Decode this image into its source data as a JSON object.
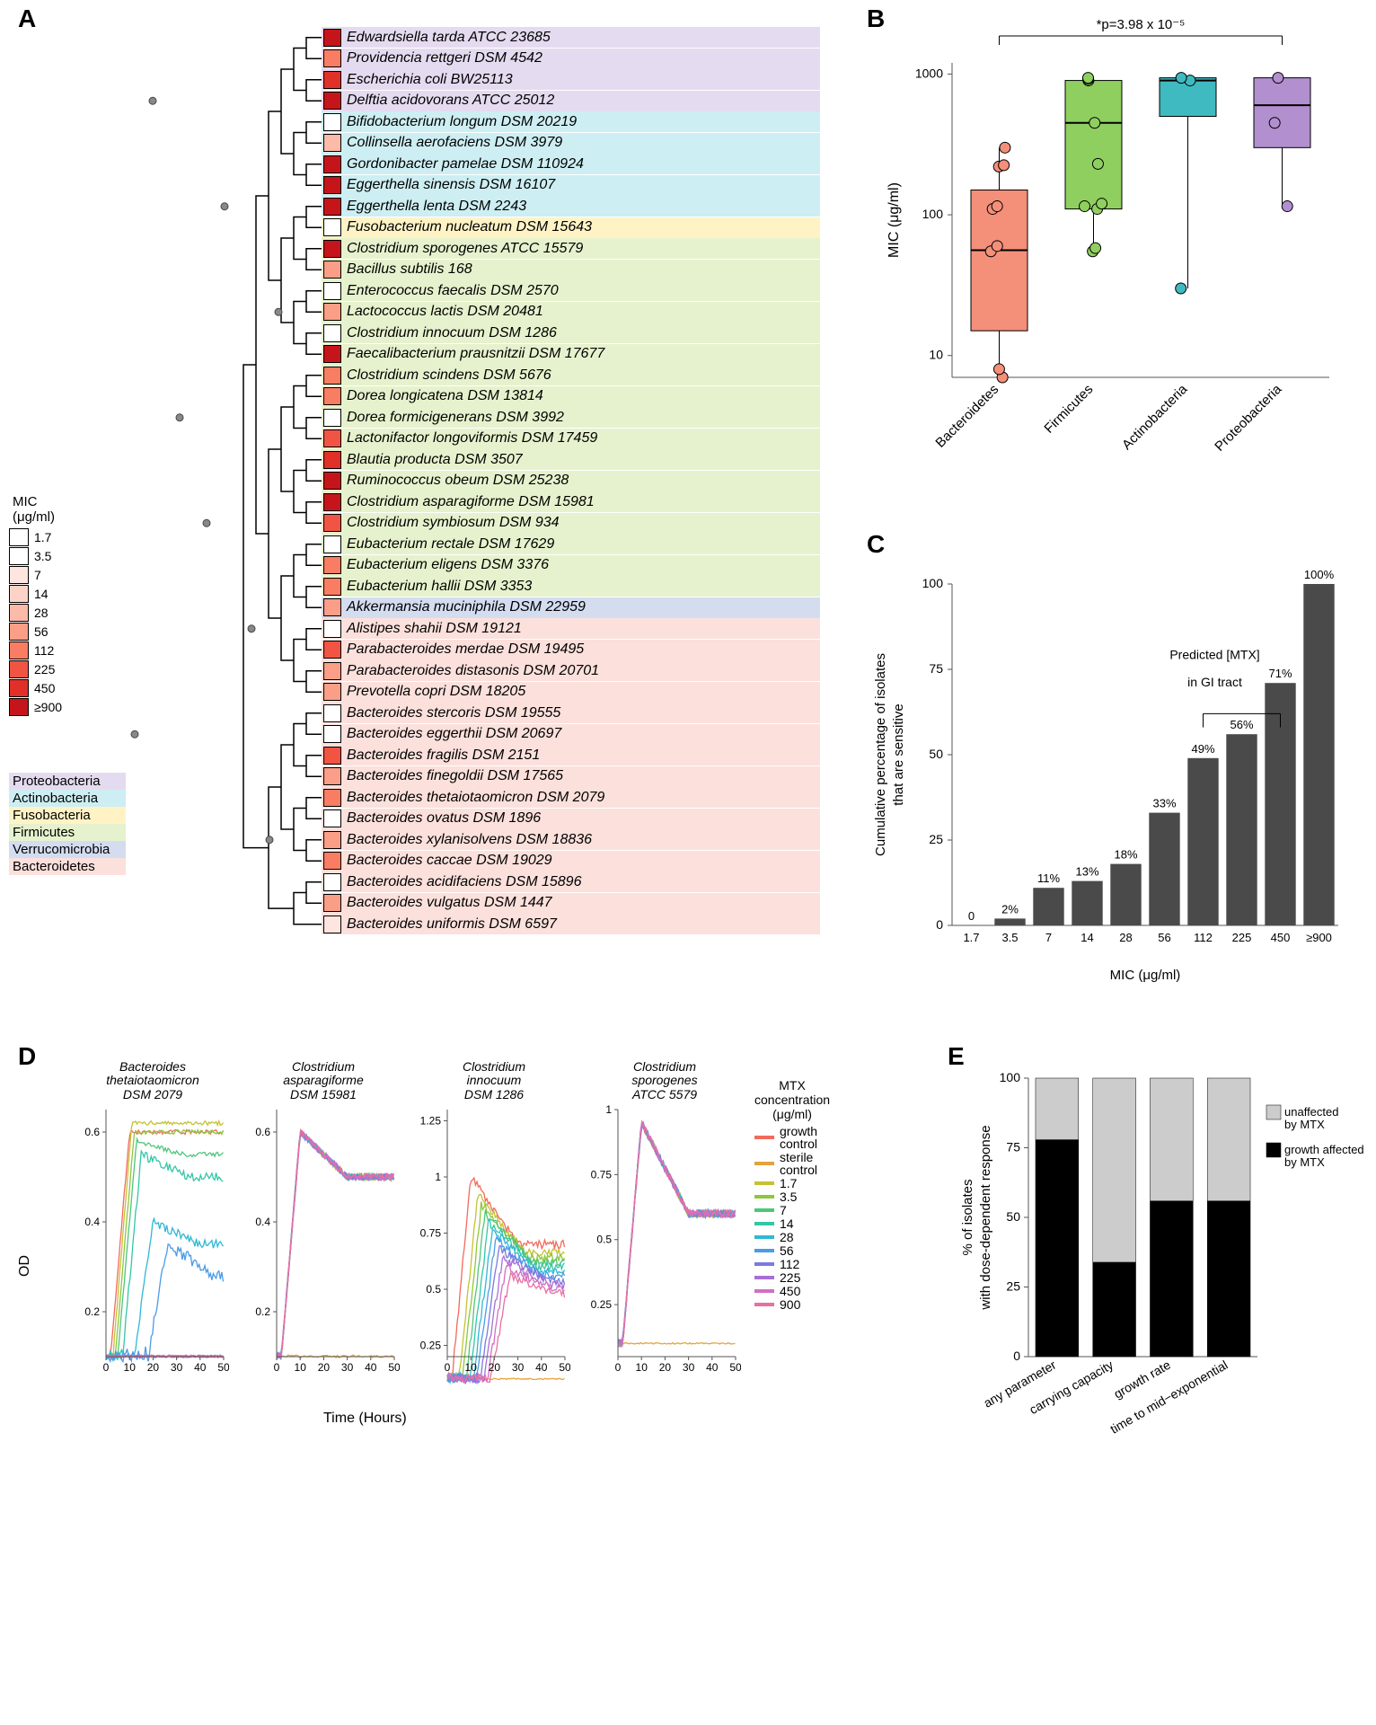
{
  "panel_labels": {
    "A": "A",
    "B": "B",
    "C": "C",
    "D": "D",
    "E": "E"
  },
  "mic_legend": {
    "title": "MIC\n(μg/ml)",
    "levels": [
      {
        "val": "1.7",
        "color": "#ffffff"
      },
      {
        "val": "3.5",
        "color": "#ffffff"
      },
      {
        "val": "7",
        "color": "#fee5e0"
      },
      {
        "val": "14",
        "color": "#fdd3c8"
      },
      {
        "val": "28",
        "color": "#fcbaa8"
      },
      {
        "val": "56",
        "color": "#fb9e87"
      },
      {
        "val": "112",
        "color": "#f97d63"
      },
      {
        "val": "225",
        "color": "#f15442"
      },
      {
        "val": "450",
        "color": "#e03028"
      },
      {
        "val": "≥900",
        "color": "#c5151a"
      }
    ]
  },
  "phyla": {
    "Proteobacteria": "#e5dbf0",
    "Actinobacteria": "#cdeef2",
    "Fusobacteria": "#fff3c6",
    "Firmicutes": "#e6f2cd",
    "Verrucomicrobia": "#d4dcf0",
    "Bacteroidetes": "#fbe0dc"
  },
  "phylum_order": [
    "Proteobacteria",
    "Actinobacteria",
    "Fusobacteria",
    "Firmicutes",
    "Verrucomicrobia",
    "Bacteroidetes"
  ],
  "panelA": {
    "species": [
      {
        "name": "Edwardsiella tarda ATCC 23685",
        "mic": "≥900",
        "phylum": "Proteobacteria"
      },
      {
        "name": "Providencia rettgeri DSM 4542",
        "mic": "112",
        "phylum": "Proteobacteria"
      },
      {
        "name": "Escherichia coli BW25113",
        "mic": "450",
        "phylum": "Proteobacteria"
      },
      {
        "name": "Delftia acidovorans ATCC 25012",
        "mic": "≥900",
        "phylum": "Proteobacteria"
      },
      {
        "name": "Bifidobacterium longum DSM 20219",
        "mic": "1.7",
        "phylum": "Actinobacteria"
      },
      {
        "name": "Collinsella aerofaciens DSM 3979",
        "mic": "28",
        "phylum": "Actinobacteria"
      },
      {
        "name": "Gordonibacter pamelae DSM 110924",
        "mic": "≥900",
        "phylum": "Actinobacteria"
      },
      {
        "name": "Eggerthella sinensis DSM 16107",
        "mic": "≥900",
        "phylum": "Actinobacteria"
      },
      {
        "name": "Eggerthella lenta DSM 2243",
        "mic": "≥900",
        "phylum": "Actinobacteria"
      },
      {
        "name": "Fusobacterium nucleatum DSM 15643",
        "mic": "1.7",
        "phylum": "Fusobacteria"
      },
      {
        "name": "Clostridium sporogenes ATCC 15579",
        "mic": "≥900",
        "phylum": "Firmicutes"
      },
      {
        "name": "Bacillus subtilis 168",
        "mic": "56",
        "phylum": "Firmicutes"
      },
      {
        "name": "Enterococcus faecalis DSM 2570",
        "mic": "1.7",
        "phylum": "Firmicutes"
      },
      {
        "name": "Lactococcus lactis DSM 20481",
        "mic": "56",
        "phylum": "Firmicutes"
      },
      {
        "name": "Clostridium innocuum DSM 1286",
        "mic": "1.7",
        "phylum": "Firmicutes"
      },
      {
        "name": "Faecalibacterium prausnitzii DSM 17677",
        "mic": "≥900",
        "phylum": "Firmicutes"
      },
      {
        "name": "Clostridium scindens DSM 5676",
        "mic": "112",
        "phylum": "Firmicutes"
      },
      {
        "name": "Dorea longicatena DSM 13814",
        "mic": "112",
        "phylum": "Firmicutes"
      },
      {
        "name": "Dorea formicigenerans DSM 3992",
        "mic": "1.7",
        "phylum": "Firmicutes"
      },
      {
        "name": "Lactonifactor longoviformis DSM 17459",
        "mic": "225",
        "phylum": "Firmicutes"
      },
      {
        "name": "Blautia producta DSM 3507",
        "mic": "450",
        "phylum": "Firmicutes"
      },
      {
        "name": "Ruminococcus obeum DSM 25238",
        "mic": "≥900",
        "phylum": "Firmicutes"
      },
      {
        "name": "Clostridium asparagiforme DSM 15981",
        "mic": "≥900",
        "phylum": "Firmicutes"
      },
      {
        "name": "Clostridium symbiosum DSM 934",
        "mic": "225",
        "phylum": "Firmicutes"
      },
      {
        "name": "Eubacterium rectale DSM 17629",
        "mic": "1.7",
        "phylum": "Firmicutes"
      },
      {
        "name": "Eubacterium eligens DSM 3376",
        "mic": "112",
        "phylum": "Firmicutes"
      },
      {
        "name": "Eubacterium hallii DSM 3353",
        "mic": "112",
        "phylum": "Firmicutes"
      },
      {
        "name": "Akkermansia muciniphila DSM 22959",
        "mic": "56",
        "phylum": "Verrucomicrobia"
      },
      {
        "name": "Alistipes shahii DSM 19121",
        "mic": "1.7",
        "phylum": "Bacteroidetes"
      },
      {
        "name": "Parabacteroides merdae DSM 19495",
        "mic": "225",
        "phylum": "Bacteroidetes"
      },
      {
        "name": "Parabacteroides distasonis DSM 20701",
        "mic": "56",
        "phylum": "Bacteroidetes"
      },
      {
        "name": "Prevotella copri DSM 18205",
        "mic": "56",
        "phylum": "Bacteroidetes"
      },
      {
        "name": "Bacteroides stercoris DSM 19555",
        "mic": "1.7",
        "phylum": "Bacteroidetes"
      },
      {
        "name": "Bacteroides eggerthii DSM 20697",
        "mic": "1.7",
        "phylum": "Bacteroidetes"
      },
      {
        "name": "Bacteroides fragilis DSM 2151",
        "mic": "225",
        "phylum": "Bacteroidetes"
      },
      {
        "name": "Bacteroides finegoldii DSM 17565",
        "mic": "56",
        "phylum": "Bacteroidetes"
      },
      {
        "name": "Bacteroides thetaiotaomicron DSM 2079",
        "mic": "112",
        "phylum": "Bacteroidetes"
      },
      {
        "name": "Bacteroides ovatus DSM 1896",
        "mic": "1.7",
        "phylum": "Bacteroidetes"
      },
      {
        "name": "Bacteroides xylanisolvens DSM 18836",
        "mic": "56",
        "phylum": "Bacteroidetes"
      },
      {
        "name": "Bacteroides caccae DSM 19029",
        "mic": "112",
        "phylum": "Bacteroidetes"
      },
      {
        "name": "Bacteroides acidifaciens DSM 15896",
        "mic": "3.5",
        "phylum": "Bacteroidetes"
      },
      {
        "name": "Bacteroides vulgatus DSM 1447",
        "mic": "56",
        "phylum": "Bacteroidetes"
      },
      {
        "name": "Bacteroides uniformis DSM 6597",
        "mic": "7",
        "phylum": "Bacteroidetes"
      }
    ]
  },
  "panelB": {
    "ylabel": "MIC (μg/ml)",
    "pvalue": "*p=3.98 x 10⁻⁵",
    "yticks": [
      10,
      100,
      1000
    ],
    "categories": [
      "Bacteroidetes",
      "Firmicutes",
      "Actinobacteria",
      "Proteobacteria"
    ],
    "colors": [
      "#f48f7a",
      "#8fcf5f",
      "#3fbac0",
      "#b28fcf"
    ],
    "boxes": [
      {
        "q1": 15,
        "med": 56,
        "q3": 150,
        "lo": 7,
        "hi": 300
      },
      {
        "q1": 110,
        "med": 450,
        "q3": 900,
        "lo": 55,
        "hi": 950
      },
      {
        "q1": 500,
        "med": 900,
        "q3": 940,
        "lo": 30,
        "hi": 950
      },
      {
        "q1": 300,
        "med": 600,
        "q3": 940,
        "lo": 115,
        "hi": 950
      }
    ],
    "points": [
      {
        "cat": 0,
        "y": 7
      },
      {
        "cat": 0,
        "y": 8
      },
      {
        "cat": 0,
        "y": 55
      },
      {
        "cat": 0,
        "y": 60
      },
      {
        "cat": 0,
        "y": 110
      },
      {
        "cat": 0,
        "y": 115
      },
      {
        "cat": 0,
        "y": 220
      },
      {
        "cat": 0,
        "y": 225
      },
      {
        "cat": 0,
        "y": 300
      },
      {
        "cat": 1,
        "y": 55
      },
      {
        "cat": 1,
        "y": 58
      },
      {
        "cat": 1,
        "y": 110
      },
      {
        "cat": 1,
        "y": 115
      },
      {
        "cat": 1,
        "y": 120
      },
      {
        "cat": 1,
        "y": 230
      },
      {
        "cat": 1,
        "y": 450
      },
      {
        "cat": 1,
        "y": 900
      },
      {
        "cat": 1,
        "y": 920
      },
      {
        "cat": 1,
        "y": 940
      },
      {
        "cat": 2,
        "y": 30
      },
      {
        "cat": 2,
        "y": 900
      },
      {
        "cat": 2,
        "y": 940
      },
      {
        "cat": 3,
        "y": 115
      },
      {
        "cat": 3,
        "y": 450
      },
      {
        "cat": 3,
        "y": 940
      }
    ]
  },
  "panelC": {
    "ylabel": "Cumulative percentage of isolates\nthat are sensitive",
    "xlabel": "MIC (μg/ml)",
    "annotation": "Predicted [MTX]\nin GI tract",
    "categories": [
      "1.7",
      "3.5",
      "7",
      "14",
      "28",
      "56",
      "112",
      "225",
      "450",
      "≥900"
    ],
    "values": [
      0,
      2,
      11,
      13,
      18,
      33,
      49,
      56,
      71,
      100
    ],
    "labels": [
      "0",
      "2%",
      "11%",
      "13%",
      "18%",
      "33%",
      "49%",
      "56%",
      "71%",
      "100%"
    ],
    "yticks": [
      0,
      25,
      50,
      75,
      100
    ],
    "bar_color": "#4a4a4a"
  },
  "panelD": {
    "ylabel": "OD",
    "xlabel": "Time (Hours)",
    "xticks": [
      0,
      10,
      20,
      30,
      40,
      50
    ],
    "legend_title": "MTX\nconcentration\n(μg/ml)",
    "legend_items": [
      {
        "label": "growth\ncontrol",
        "color": "#f26a5b"
      },
      {
        "label": "sterile\ncontrol",
        "color": "#e6a23c"
      },
      {
        "label": "1.7",
        "color": "#c4c233"
      },
      {
        "label": "3.5",
        "color": "#8fc63f"
      },
      {
        "label": "7",
        "color": "#4ec67a"
      },
      {
        "label": "14",
        "color": "#33c6a8"
      },
      {
        "label": "28",
        "color": "#2fb8d4"
      },
      {
        "label": "56",
        "color": "#4a9be8"
      },
      {
        "label": "112",
        "color": "#7a7ae0"
      },
      {
        "label": "225",
        "color": "#a86fd8"
      },
      {
        "label": "450",
        "color": "#d06fc2"
      },
      {
        "label": "900",
        "color": "#e86fa2"
      }
    ],
    "subplots": [
      {
        "title": "Bacteroides\nthetaiotaomicron\nDSM 2079",
        "ymin": 0.1,
        "ymax": 0.65,
        "yticks": [
          0.2,
          0.4,
          0.6
        ]
      },
      {
        "title": "Clostridium\nasparagiforme\nDSM 15981",
        "ymin": 0.1,
        "ymax": 0.65,
        "yticks": [
          0.2,
          0.4,
          0.6
        ]
      },
      {
        "title": "Clostridium\ninnocuum\nDSM 1286",
        "ymin": 0.2,
        "ymax": 1.3,
        "yticks": [
          0.25,
          0.5,
          0.75,
          1.0,
          1.25
        ]
      },
      {
        "title": "Clostridium\nsporogenes\nATCC 5579",
        "ymin": 0.05,
        "ymax": 1.0,
        "yticks": [
          0.25,
          0.5,
          0.75,
          1.0
        ]
      }
    ]
  },
  "panelE": {
    "ylabel": "% of isolates\nwith dose-dependent response",
    "categories": [
      "any parameter",
      "carrying capacity",
      "growth rate",
      "time to mid−exponential"
    ],
    "values": [
      78,
      34,
      56,
      56
    ],
    "yticks": [
      0,
      25,
      50,
      75,
      100
    ],
    "legend": [
      {
        "label": "unaffected\nby MTX",
        "color": "#cccccc"
      },
      {
        "label": "growth affected\nby MTX",
        "color": "#000000"
      }
    ]
  }
}
